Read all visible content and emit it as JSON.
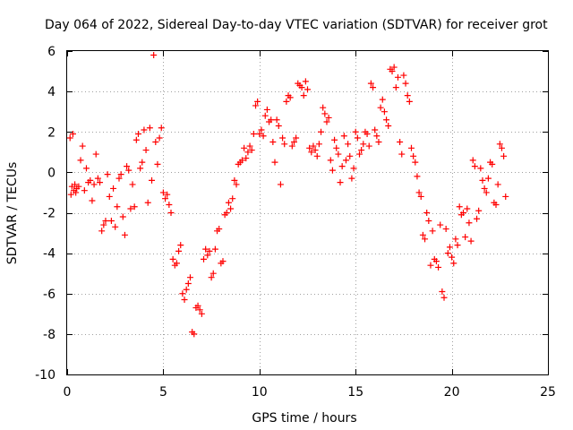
{
  "chart_data": {
    "type": "scatter",
    "title": "Day 064 of 2022, Sidereal Day-to-day VTEC variation (SDTVAR) for receiver grot",
    "xlabel": "GPS time / hours",
    "ylabel": "SDTVAR / TECUs",
    "xlim": [
      0,
      25
    ],
    "ylim": [
      -10,
      6
    ],
    "grid": true,
    "x_ticks": [
      0,
      5,
      10,
      15,
      20,
      25
    ],
    "y_ticks": [
      -10,
      -8,
      -6,
      -4,
      -2,
      0,
      2,
      4,
      6
    ],
    "x_tick_labels": [
      "0",
      "5",
      "10",
      "15",
      "20",
      "25"
    ],
    "y_tick_labels": [
      "-10",
      "-8",
      "-6",
      "-4",
      "-2",
      "0",
      "2",
      "4",
      "6"
    ],
    "marker": "plus",
    "series": [
      {
        "name": "SDTVAR",
        "color": "#ff0000",
        "x": [
          0.15,
          0.2,
          0.25,
          0.3,
          0.35,
          0.4,
          0.45,
          0.5,
          0.6,
          0.7,
          0.8,
          0.9,
          1.0,
          1.1,
          1.2,
          1.3,
          1.4,
          1.5,
          1.6,
          1.7,
          1.8,
          1.9,
          2.0,
          2.1,
          2.2,
          2.3,
          2.4,
          2.5,
          2.6,
          2.7,
          2.8,
          2.9,
          3.0,
          3.1,
          3.2,
          3.3,
          3.4,
          3.5,
          3.6,
          3.7,
          3.8,
          3.9,
          4.0,
          4.1,
          4.2,
          4.3,
          4.4,
          4.5,
          4.6,
          4.7,
          4.8,
          4.9,
          5.0,
          5.1,
          5.2,
          5.3,
          5.4,
          5.5,
          5.6,
          5.7,
          5.8,
          5.9,
          6.0,
          6.1,
          6.2,
          6.3,
          6.4,
          6.5,
          6.6,
          6.7,
          6.8,
          6.9,
          7.0,
          7.1,
          7.2,
          7.3,
          7.4,
          7.5,
          7.6,
          7.7,
          7.8,
          7.9,
          8.0,
          8.1,
          8.2,
          8.3,
          8.4,
          8.5,
          8.6,
          8.7,
          8.8,
          8.9,
          9.0,
          9.1,
          9.2,
          9.3,
          9.4,
          9.5,
          9.6,
          9.7,
          9.8,
          9.9,
          10.0,
          10.1,
          10.2,
          10.3,
          10.4,
          10.5,
          10.6,
          10.7,
          10.8,
          10.9,
          11.0,
          11.1,
          11.2,
          11.3,
          11.4,
          11.5,
          11.6,
          11.7,
          11.8,
          11.9,
          12.0,
          12.1,
          12.2,
          12.3,
          12.4,
          12.5,
          12.6,
          12.7,
          12.8,
          12.9,
          13.0,
          13.1,
          13.2,
          13.3,
          13.4,
          13.5,
          13.6,
          13.7,
          13.8,
          13.9,
          14.0,
          14.1,
          14.2,
          14.3,
          14.4,
          14.5,
          14.6,
          14.7,
          14.8,
          14.9,
          15.0,
          15.1,
          15.2,
          15.3,
          15.4,
          15.5,
          15.6,
          15.7,
          15.8,
          15.9,
          16.0,
          16.1,
          16.2,
          16.3,
          16.4,
          16.5,
          16.6,
          16.7,
          16.8,
          16.9,
          17.0,
          17.1,
          17.2,
          17.3,
          17.4,
          17.5,
          17.6,
          17.7,
          17.8,
          17.9,
          18.0,
          18.1,
          18.2,
          18.3,
          18.4,
          18.5,
          18.6,
          18.7,
          18.8,
          18.9,
          19.0,
          19.1,
          19.2,
          19.3,
          19.4,
          19.5,
          19.6,
          19.7,
          19.8,
          19.9,
          20.0,
          20.1,
          20.2,
          20.3,
          20.4,
          20.5,
          20.6,
          20.7,
          20.8,
          20.9,
          21.0,
          21.1,
          21.2,
          21.3,
          21.4,
          21.5,
          21.6,
          21.7,
          21.8,
          21.9,
          22.0,
          22.1,
          22.2,
          22.3,
          22.4,
          22.5,
          22.6,
          22.7,
          22.8
        ],
        "y": [
          1.7,
          -1.1,
          -0.7,
          1.9,
          -0.9,
          -0.6,
          -1.0,
          -0.8,
          -0.7,
          0.6,
          1.3,
          -0.9,
          0.2,
          -0.5,
          -0.4,
          -1.4,
          -0.6,
          0.9,
          -0.3,
          -0.5,
          -2.9,
          -2.6,
          -2.4,
          -0.1,
          -1.2,
          -2.4,
          -0.8,
          -2.7,
          -1.7,
          -0.3,
          -0.1,
          -2.2,
          -3.1,
          0.3,
          0.1,
          -1.8,
          -0.6,
          -1.7,
          1.6,
          1.9,
          0.2,
          0.5,
          2.1,
          1.1,
          -1.5,
          2.2,
          -0.4,
          5.8,
          1.5,
          0.4,
          1.7,
          2.2,
          -1.0,
          -1.3,
          -1.1,
          -1.6,
          -2.0,
          -4.3,
          -4.6,
          -4.5,
          -3.9,
          -3.6,
          -6.0,
          -6.3,
          -5.8,
          -5.5,
          -5.2,
          -7.9,
          -8.0,
          -6.7,
          -6.6,
          -6.8,
          -7.0,
          -4.3,
          -3.8,
          -4.1,
          -3.9,
          -5.2,
          -5.0,
          -3.8,
          -2.9,
          -2.8,
          -4.5,
          -4.4,
          -2.1,
          -2.0,
          -1.5,
          -1.8,
          -1.3,
          -0.4,
          -0.6,
          0.4,
          0.5,
          0.6,
          1.2,
          0.7,
          1.0,
          1.3,
          1.1,
          1.9,
          3.3,
          3.5,
          1.9,
          2.1,
          1.8,
          2.8,
          3.1,
          2.5,
          2.6,
          1.5,
          0.5,
          2.6,
          2.3,
          -0.6,
          1.7,
          1.4,
          3.5,
          3.8,
          3.7,
          1.3,
          1.5,
          1.7,
          4.4,
          4.3,
          4.2,
          3.8,
          4.5,
          4.1,
          1.2,
          1.0,
          1.3,
          1.1,
          0.8,
          1.4,
          2.0,
          3.2,
          2.9,
          2.5,
          2.7,
          0.6,
          0.1,
          1.6,
          1.2,
          0.9,
          -0.5,
          0.3,
          1.8,
          0.6,
          1.4,
          0.8,
          -0.3,
          0.2,
          2.0,
          1.7,
          0.9,
          1.1,
          1.4,
          2.0,
          1.9,
          1.3,
          4.4,
          4.2,
          2.1,
          1.8,
          1.5,
          3.2,
          3.6,
          3.0,
          2.6,
          2.3,
          5.1,
          5.0,
          5.2,
          4.2,
          4.7,
          1.5,
          0.9,
          4.8,
          4.4,
          3.8,
          3.5,
          1.2,
          0.8,
          0.5,
          -0.2,
          -1.0,
          -1.2,
          -3.1,
          -3.3,
          -2.0,
          -2.4,
          -4.6,
          -2.9,
          -4.3,
          -4.4,
          -4.7,
          -2.6,
          -5.9,
          -6.2,
          -2.8,
          -4.0,
          -3.7,
          -4.2,
          -4.5,
          -3.3,
          -3.6,
          -1.7,
          -2.1,
          -2.0,
          -3.2,
          -1.8,
          -2.5,
          -3.4,
          0.6,
          0.3,
          -2.3,
          -1.9,
          0.2,
          -0.4,
          -0.8,
          -1.0,
          -0.3,
          0.5,
          0.4,
          -1.5,
          -1.6,
          -0.6,
          1.4,
          1.2,
          0.8,
          -1.2
        ]
      }
    ]
  }
}
